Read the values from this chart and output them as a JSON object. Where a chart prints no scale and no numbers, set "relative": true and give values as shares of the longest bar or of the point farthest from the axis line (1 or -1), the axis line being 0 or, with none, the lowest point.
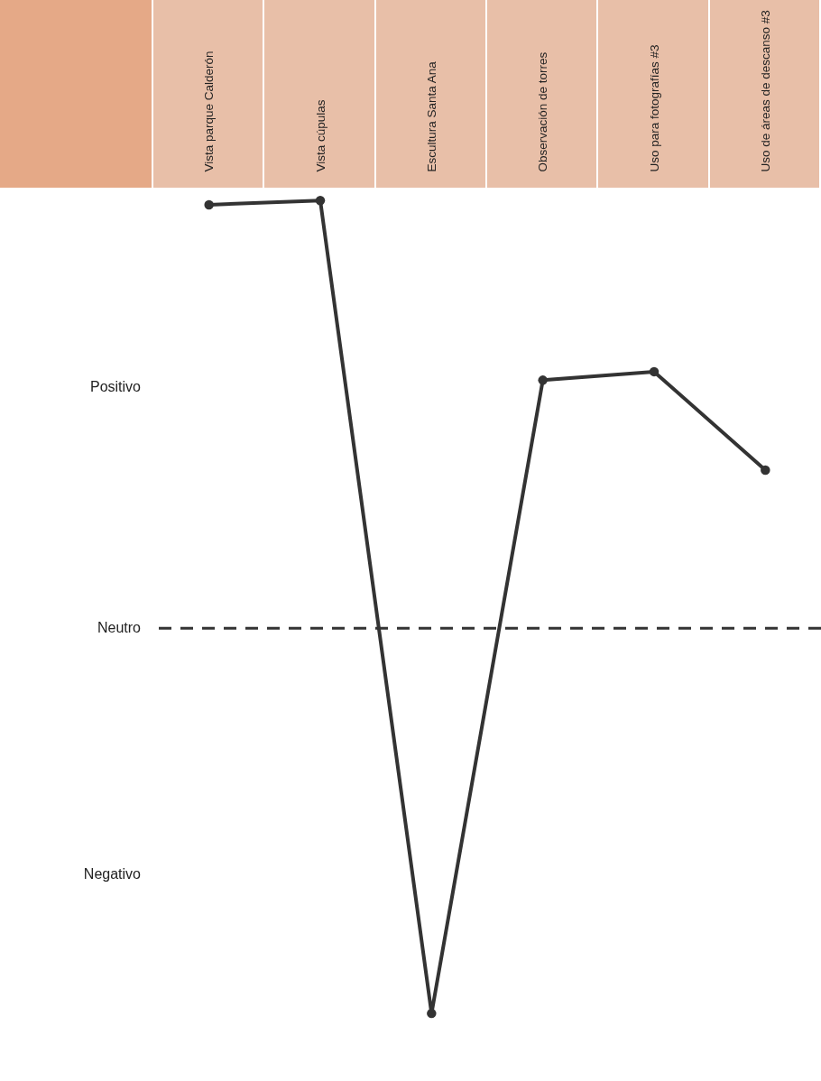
{
  "chart_data": {
    "type": "line",
    "relative": true,
    "categories": [
      "Vista parque Calderón",
      "Vista cúpulas",
      "Escultura Santa Ana",
      "Observación de torres",
      "Uso para fotografías #3",
      "Uso de áreas de descanso #3"
    ],
    "series": [
      {
        "color": "#333333",
        "values": [
          0.99,
          1,
          -0.9,
          0.58,
          0.6,
          0.37
        ]
      }
    ],
    "ref_lines": [
      {
        "axis": "y",
        "value": 0,
        "label": "Neutro",
        "color": "#333333",
        "line_style": "dashed"
      }
    ],
    "annotations": [
      "Positivo",
      "Negativo"
    ],
    "marker": "circle",
    "line_style": "solid"
  }
}
